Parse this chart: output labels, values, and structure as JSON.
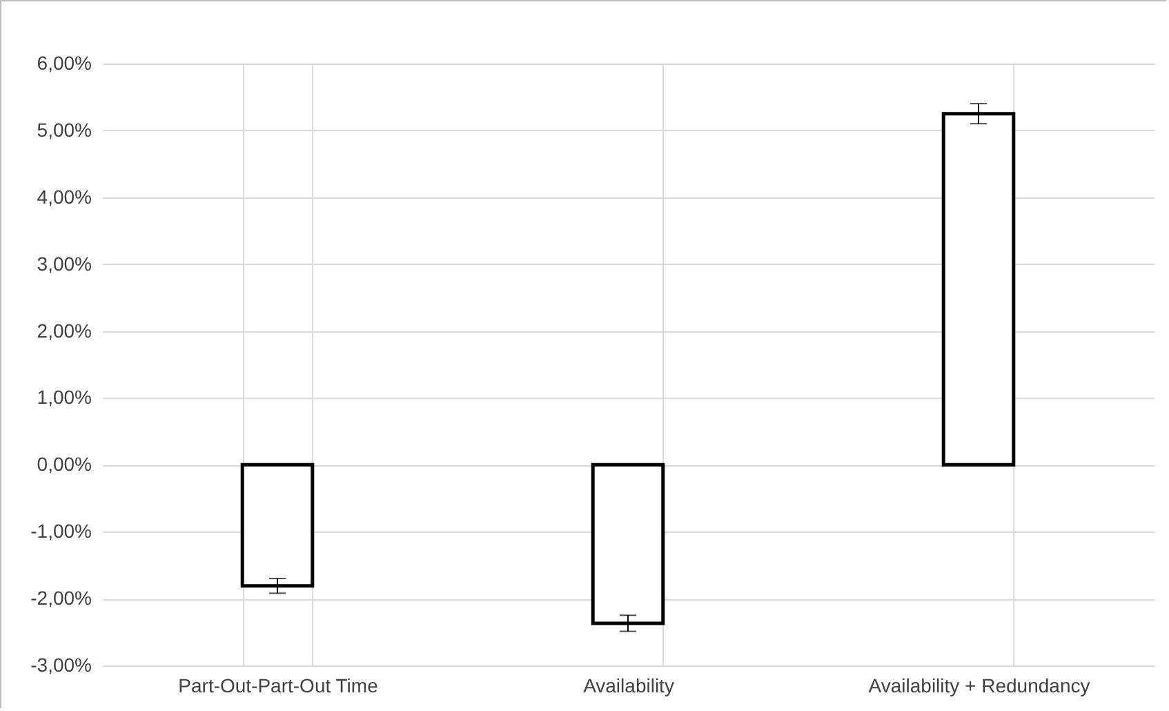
{
  "chart_data": {
    "type": "bar",
    "categories": [
      "Part-Out-Part-Out Time",
      "Availability",
      "Availability + Redundancy"
    ],
    "values": [
      -1.81,
      -2.37,
      5.25
    ],
    "errors": [
      0.11,
      0.12,
      0.15
    ],
    "color": "#ffffff",
    "ylim": [
      -3,
      6
    ],
    "yticks": [
      {
        "value": -3,
        "label": "-3,00%"
      },
      {
        "value": -2,
        "label": "-2,00%"
      },
      {
        "value": -1,
        "label": "-1,00%"
      },
      {
        "value": 0,
        "label": "0,00%"
      },
      {
        "value": 1,
        "label": "1,00%"
      },
      {
        "value": 2,
        "label": "2,00%"
      },
      {
        "value": 3,
        "label": "3,00%"
      },
      {
        "value": 4,
        "label": "4,00%"
      },
      {
        "value": 5,
        "label": "5,00%"
      },
      {
        "value": 6,
        "label": "6,00%"
      }
    ],
    "grid": true
  }
}
